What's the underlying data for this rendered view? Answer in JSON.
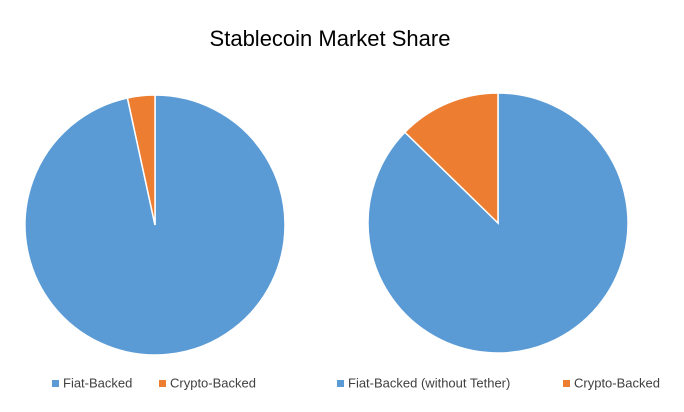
{
  "title": "Stablecoin Market Share",
  "chart_data": [
    {
      "type": "pie",
      "categories": [
        "Fiat-Backed",
        "Crypto-Backed"
      ],
      "values": [
        96.6,
        3.4
      ],
      "colors": [
        "#5b9bd5",
        "#ed7d31"
      ]
    },
    {
      "type": "pie",
      "categories": [
        "Fiat-Backed (without Tether)",
        "Crypto-Backed"
      ],
      "values": [
        87.3,
        12.7
      ],
      "colors": [
        "#5b9bd5",
        "#ed7d31"
      ]
    }
  ]
}
